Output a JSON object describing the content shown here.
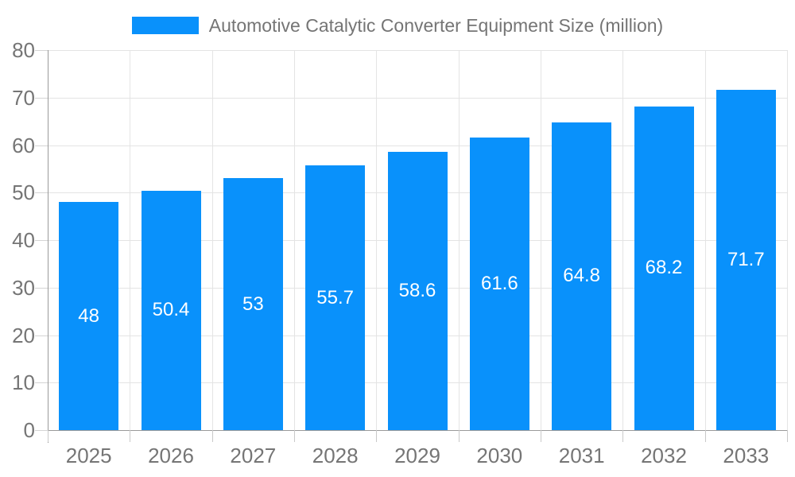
{
  "legend": {
    "label": "Automotive Catalytic Converter Equipment Size (million)"
  },
  "colors": {
    "bar": "#0991fb",
    "grid": "#e4e4e4",
    "axis_line": "#9a9a9a",
    "tick": "#cccccc",
    "axis_label": "#757575",
    "value_label": "#ffffff",
    "background": "#ffffff"
  },
  "chart_data": {
    "type": "bar",
    "title": "Automotive Catalytic Converter Equipment Size (million)",
    "categories": [
      "2025",
      "2026",
      "2027",
      "2028",
      "2029",
      "2030",
      "2031",
      "2032",
      "2033"
    ],
    "values": [
      48,
      50.4,
      53,
      55.7,
      58.6,
      61.6,
      64.8,
      68.2,
      71.7
    ],
    "value_labels": [
      "48",
      "50.4",
      "53",
      "55.7",
      "58.6",
      "61.6",
      "64.8",
      "68.2",
      "71.7"
    ],
    "xlabel": "",
    "ylabel": "",
    "ylim": [
      0,
      80
    ],
    "yticks": [
      0,
      10,
      20,
      30,
      40,
      50,
      60,
      70,
      80
    ],
    "grid": true,
    "legend_position": "top",
    "value_label_position": "inside-center"
  }
}
